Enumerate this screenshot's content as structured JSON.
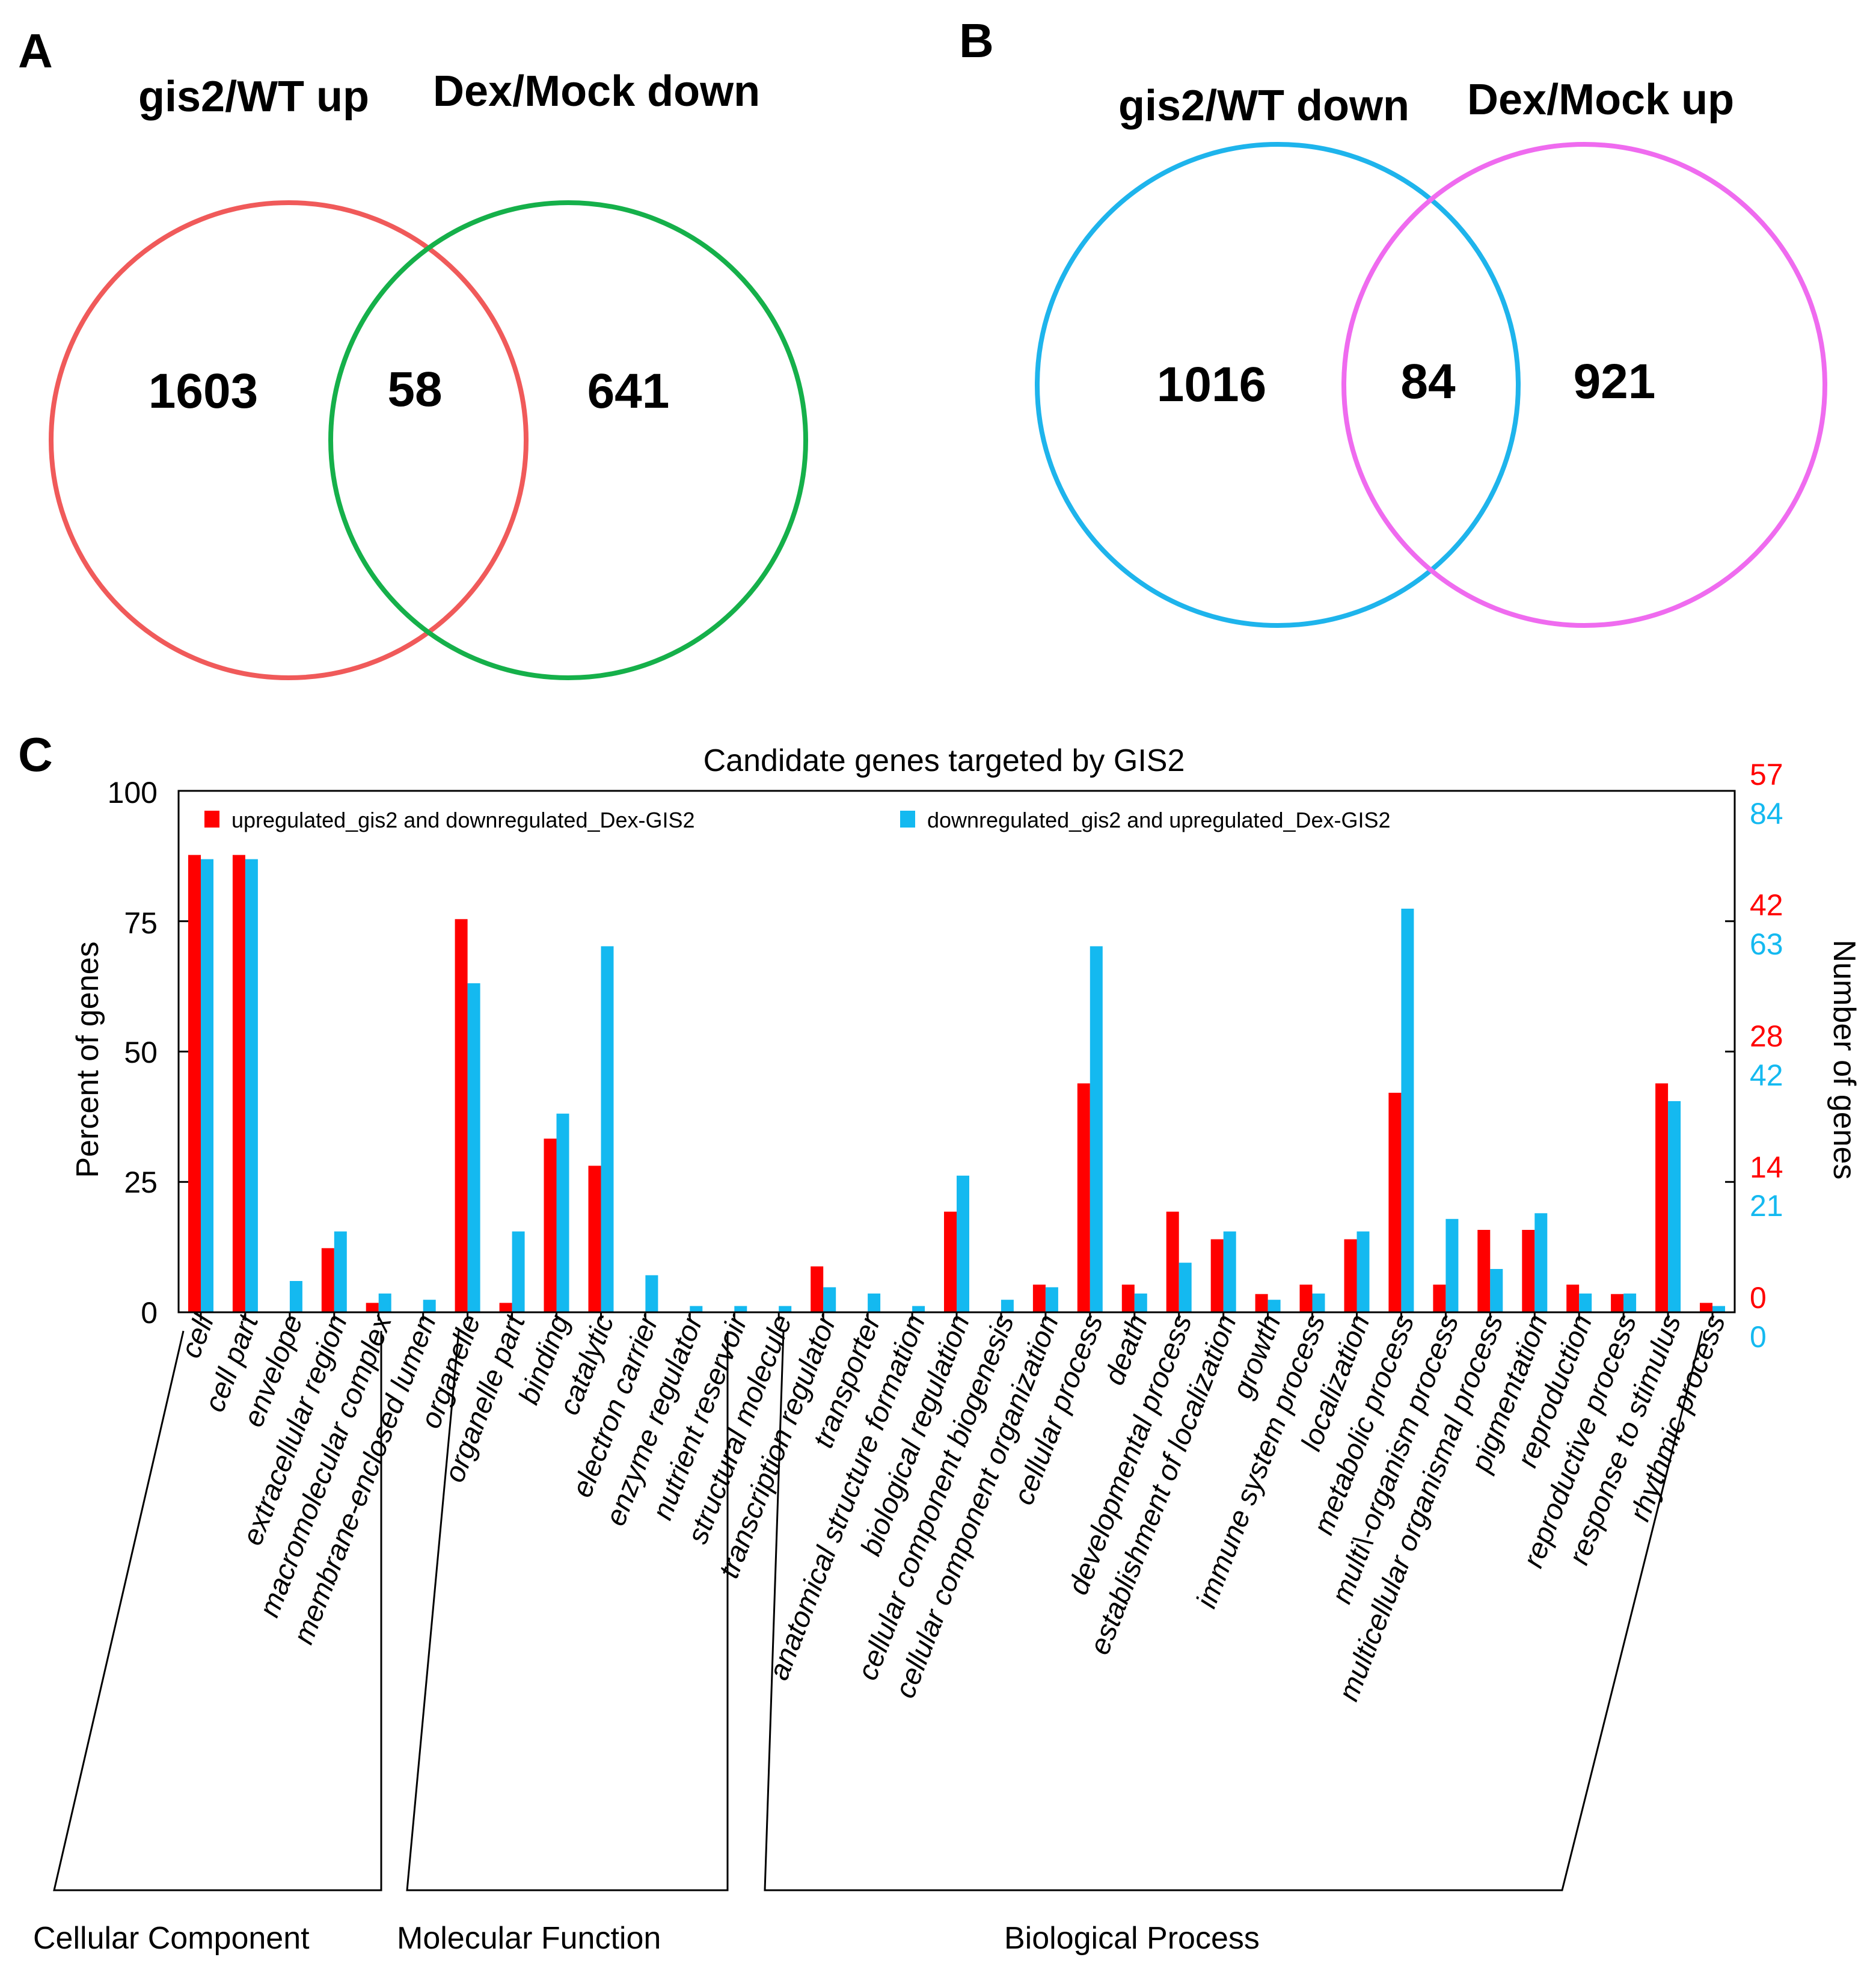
{
  "panel_a": {
    "letter": "A",
    "left_title": "gis2/WT up",
    "right_title": "Dex/Mock down",
    "left_count": "1603",
    "overlap_count": "58",
    "right_count": "641",
    "left_color": "#f05a5a",
    "right_color": "#15b04a"
  },
  "panel_b": {
    "letter": "B",
    "left_title": "gis2/WT down",
    "right_title": "Dex/Mock up",
    "left_count": "1016",
    "overlap_count": "84",
    "right_count": "921",
    "left_color": "#1eb4ec",
    "right_color": "#ef6bef"
  },
  "panel_c": {
    "letter": "C"
  },
  "chart_data": {
    "type": "bar",
    "title": "Candidate genes targeted by GIS2",
    "ylabel": "Percent of genes",
    "y2label": "Number of genes",
    "ylim": [
      0,
      100
    ],
    "yticks": [
      "0",
      "25",
      "50",
      "75",
      "100"
    ],
    "y2_ticks_red": [
      "0",
      "14",
      "28",
      "42",
      "57"
    ],
    "y2_ticks_blue": [
      "0",
      "21",
      "42",
      "63",
      "84"
    ],
    "colors": {
      "red": "#ff0000",
      "blue": "#14b9f0"
    },
    "categories": [
      "cell",
      "cell part",
      "envelope",
      "extracellular region",
      "macromolecular complex",
      "membrane-enclosed lumen",
      "organelle",
      "organelle part",
      "binding",
      "catalytic",
      "electron carrier",
      "enzyme regulator",
      "nutrient reservoir",
      "structural molecule",
      "transcription regulator",
      "transporter",
      "anatomical structure formation",
      "biological regulation",
      "cellular component biogenesis",
      "cellular component organization",
      "cellular process",
      "death",
      "developmental process",
      "establishment of localization",
      "growth",
      "immune system process",
      "localization",
      "metabolic process",
      "multi\\-organism process",
      "multicellular organismal process",
      "pigmentation",
      "reproduction",
      "reproductive process",
      "response to stimulus",
      "rhythmic process"
    ],
    "series": [
      {
        "name": "upregulated_gis2 and downregulated_Dex-GIS2",
        "color": "#ff0000",
        "values": [
          87.7,
          87.7,
          0,
          12.3,
          1.8,
          0,
          75.4,
          1.8,
          33.3,
          28.1,
          0,
          0,
          0,
          0,
          8.8,
          0,
          0,
          19.3,
          0,
          5.3,
          43.9,
          5.3,
          19.3,
          14.0,
          3.5,
          5.3,
          14.0,
          42.1,
          5.3,
          15.8,
          15.8,
          5.3,
          3.5,
          43.9,
          1.8
        ]
      },
      {
        "name": "downregulated_gis2 and upregulated_Dex-GIS2",
        "color": "#14b9f0",
        "values": [
          86.9,
          86.9,
          6.0,
          15.5,
          3.6,
          2.4,
          63.1,
          15.5,
          38.1,
          70.2,
          7.1,
          1.2,
          1.2,
          1.2,
          4.8,
          3.6,
          1.2,
          26.2,
          2.4,
          4.8,
          70.2,
          3.6,
          9.5,
          15.5,
          2.4,
          3.6,
          15.5,
          77.4,
          17.9,
          8.3,
          19.0,
          3.6,
          3.6,
          40.5,
          1.2
        ]
      }
    ],
    "groups": [
      {
        "label": "Cellular Component",
        "start": 0,
        "end": 7
      },
      {
        "label": "Molecular Function",
        "start": 8,
        "end": 15
      },
      {
        "label": "Biological Process",
        "start": 16,
        "end": 34
      }
    ]
  }
}
